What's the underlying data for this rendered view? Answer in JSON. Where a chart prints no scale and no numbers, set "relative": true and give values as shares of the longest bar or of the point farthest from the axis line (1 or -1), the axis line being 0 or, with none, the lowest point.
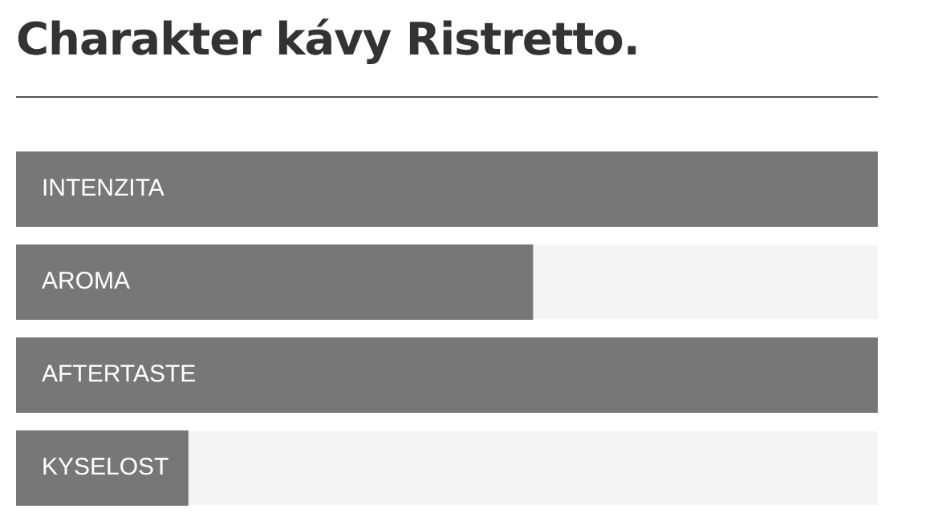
{
  "chart_data": {
    "type": "bar",
    "orientation": "horizontal",
    "relative": true,
    "title": "Charakter kávy Ristretto.",
    "categories": [
      "INTENZITA",
      "AROMA",
      "AFTERTASTE",
      "KYSELOST"
    ],
    "values": [
      1,
      0.6,
      1,
      0.2
    ],
    "color": "#777777"
  }
}
